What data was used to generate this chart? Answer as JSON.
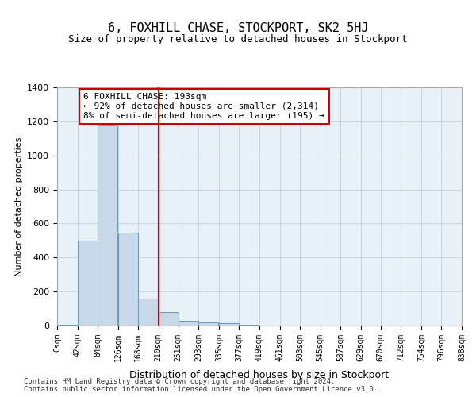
{
  "title": "6, FOXHILL CHASE, STOCKPORT, SK2 5HJ",
  "subtitle": "Size of property relative to detached houses in Stockport",
  "xlabel": "Distribution of detached houses by size in Stockport",
  "ylabel": "Number of detached properties",
  "footnote": "Contains HM Land Registry data © Crown copyright and database right 2024.\nContains public sector information licensed under the Open Government Licence v3.0.",
  "bin_labels": [
    "0sqm",
    "42sqm",
    "84sqm",
    "126sqm",
    "168sqm",
    "210sqm",
    "251sqm",
    "293sqm",
    "335sqm",
    "377sqm",
    "419sqm",
    "461sqm",
    "503sqm",
    "545sqm",
    "587sqm",
    "629sqm",
    "670sqm",
    "712sqm",
    "754sqm",
    "796sqm",
    "838sqm"
  ],
  "bar_values": [
    5,
    500,
    1175,
    545,
    160,
    80,
    30,
    20,
    12,
    5,
    2,
    0,
    0,
    0,
    0,
    0,
    0,
    0,
    0,
    0
  ],
  "bar_color": "#c8d8e8",
  "bar_edge_color": "#6699bb",
  "property_size": 193,
  "property_bin_index": 4,
  "vline_x": 193,
  "annotation_text": "6 FOXHILL CHASE: 193sqm\n← 92% of detached houses are smaller (2,314)\n8% of semi-detached houses are larger (195) →",
  "annotation_box_color": "#ffffff",
  "annotation_box_edge": "#cc0000",
  "vline_color": "#cc0000",
  "ylim": [
    0,
    1400
  ],
  "bg_color": "#e8f0f8",
  "plot_bg_color": "#e8f0f8"
}
